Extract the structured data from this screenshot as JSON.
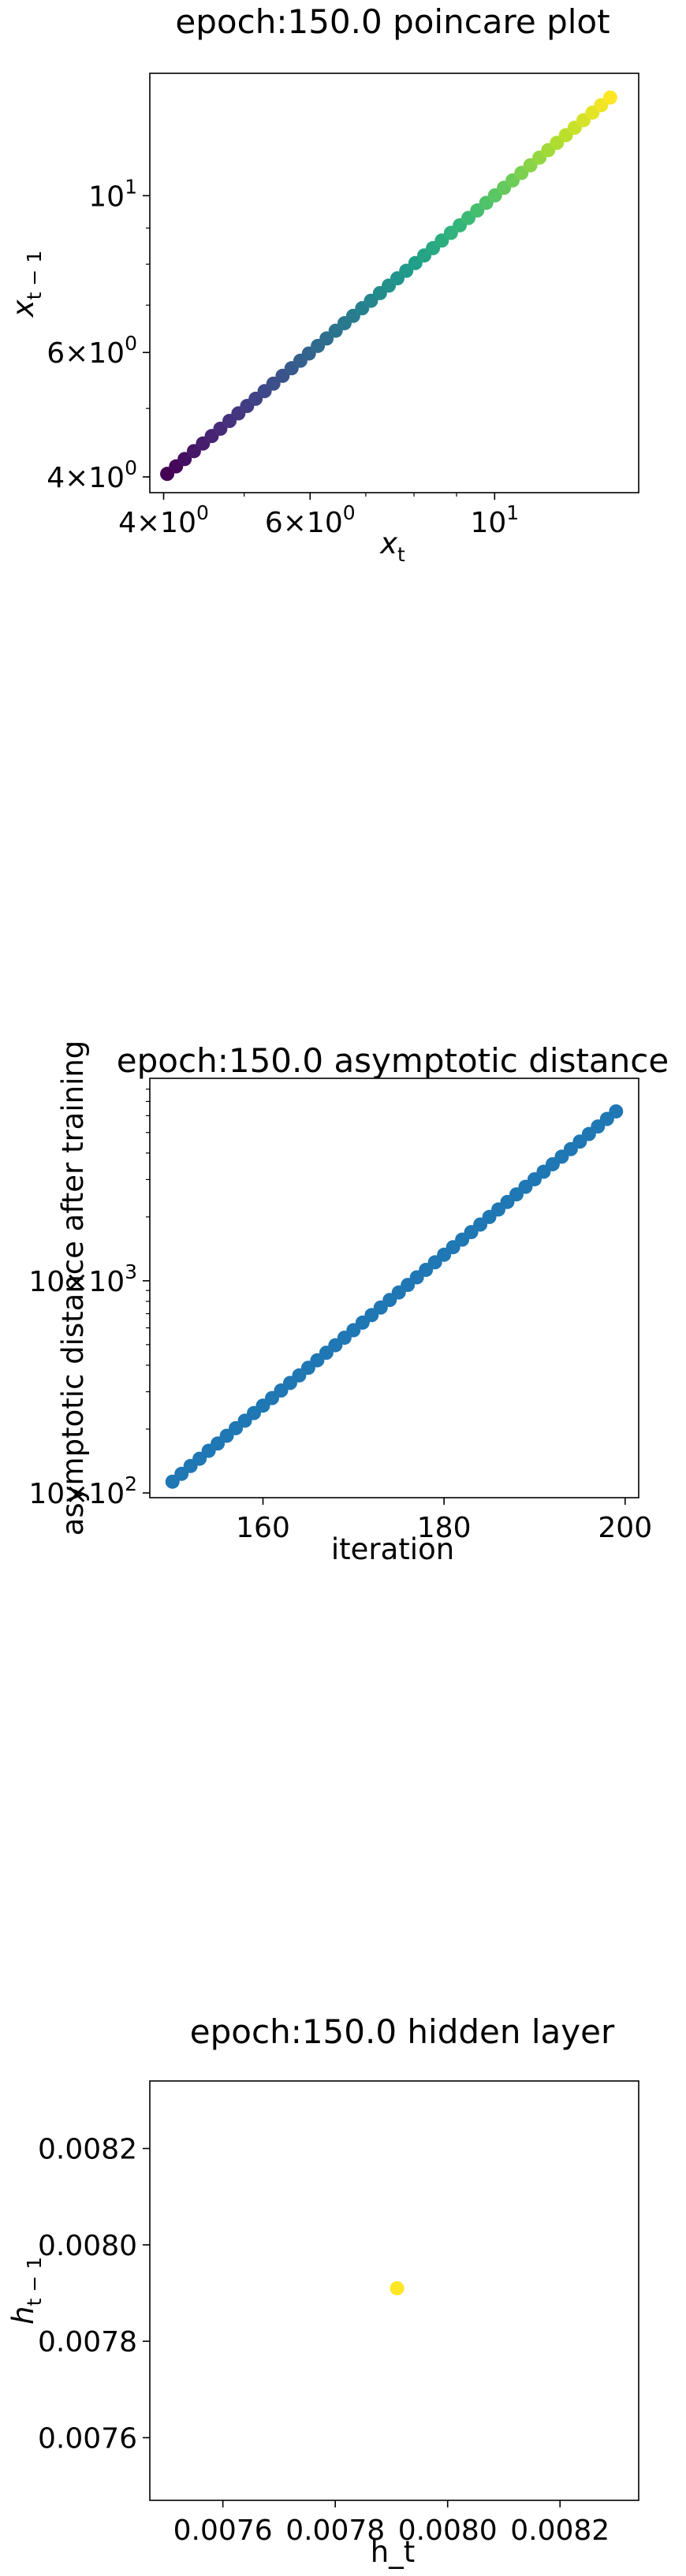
{
  "chart_data": [
    {
      "type": "scatter",
      "title": "epoch:150.0 poincare plot",
      "xlabel": "x_t",
      "ylabel": "x_{t-1}",
      "xscale": "log",
      "yscale": "log",
      "xlim": [
        3.85,
        14.9
      ],
      "ylim": [
        3.8,
        14.9
      ],
      "xticks": [
        {
          "value": 4,
          "mantissa": "4",
          "exponent": "0"
        },
        {
          "value": 6,
          "mantissa": "6",
          "exponent": "0"
        },
        {
          "value": 10,
          "mantissa": "",
          "exponent": "1"
        }
      ],
      "yticks": [
        {
          "value": 4,
          "mantissa": "4",
          "exponent": "0"
        },
        {
          "value": 6,
          "mantissa": "6",
          "exponent": "0"
        },
        {
          "value": 10,
          "mantissa": "",
          "exponent": "1"
        }
      ],
      "colormap": "viridis",
      "series": [
        {
          "x": [
            4.04,
            4.14,
            4.24,
            4.35,
            4.46,
            4.57,
            4.68,
            4.8,
            4.92,
            5.04,
            5.16,
            5.29,
            5.42,
            5.56,
            5.7,
            5.84,
            5.98,
            6.13,
            6.28,
            6.44,
            6.6,
            6.76,
            6.93,
            7.1,
            7.28,
            7.46,
            7.64,
            7.83,
            8.03,
            8.23,
            8.43,
            8.64,
            8.86,
            9.08,
            9.3,
            9.53,
            9.77,
            10.01,
            10.26,
            10.51,
            10.77,
            11.04,
            11.32,
            11.6,
            11.88,
            12.18,
            12.48,
            12.79,
            13.11,
            13.43,
            13.77
          ],
          "y": [
            4.04,
            4.14,
            4.24,
            4.35,
            4.46,
            4.57,
            4.68,
            4.8,
            4.92,
            5.04,
            5.16,
            5.29,
            5.42,
            5.56,
            5.7,
            5.84,
            5.98,
            6.13,
            6.28,
            6.44,
            6.6,
            6.76,
            6.93,
            7.1,
            7.28,
            7.46,
            7.64,
            7.83,
            8.03,
            8.23,
            8.43,
            8.64,
            8.86,
            9.08,
            9.3,
            9.53,
            9.77,
            10.01,
            10.26,
            10.51,
            10.77,
            11.04,
            11.32,
            11.6,
            11.88,
            12.18,
            12.48,
            12.79,
            13.11,
            13.43,
            13.77
          ]
        }
      ]
    },
    {
      "type": "scatter",
      "title": "epoch:150.0 asymptotic distance",
      "xlabel": "iteration",
      "ylabel": "asymptotic distance after training",
      "xscale": "linear",
      "yscale": "log",
      "xlim": [
        147.5,
        201.5
      ],
      "ylim": [
        95,
        9000
      ],
      "xticks": [
        {
          "value": 160,
          "label": "160"
        },
        {
          "value": 180,
          "label": "180"
        },
        {
          "value": 200,
          "label": "200"
        }
      ],
      "yticks": [
        {
          "value": 100,
          "mantissa": "10",
          "exponent": "2"
        },
        {
          "value": 1000,
          "mantissa": "10",
          "exponent": "3"
        }
      ],
      "color": "#1f77b4",
      "series": [
        {
          "x": [
            150,
            151,
            152,
            153,
            154,
            155,
            156,
            157,
            158,
            159,
            160,
            161,
            162,
            163,
            164,
            165,
            166,
            167,
            168,
            169,
            170,
            171,
            172,
            173,
            174,
            175,
            176,
            177,
            178,
            179,
            180,
            181,
            182,
            183,
            184,
            185,
            186,
            187,
            188,
            189,
            190,
            191,
            192,
            193,
            194,
            195,
            196,
            197,
            198,
            199
          ],
          "y": [
            113,
            123,
            134,
            145,
            158,
            171,
            186,
            202,
            219,
            238,
            258,
            280,
            304,
            330,
            358,
            389,
            422,
            458,
            497,
            539,
            585,
            635,
            689,
            748,
            812,
            881,
            956,
            1038,
            1126,
            1222,
            1327,
            1440,
            1563,
            1696,
            1841,
            1998,
            2168,
            2353,
            2554,
            2772,
            3008,
            3265,
            3544,
            3846,
            4174,
            4530,
            4917,
            5336,
            5791,
            6285
          ]
        }
      ]
    },
    {
      "type": "scatter",
      "title": "epoch:150.0 hidden layer",
      "xlabel": "h_t",
      "ylabel": "h_{t-1}",
      "xscale": "linear",
      "yscale": "linear",
      "xlim": [
        0.00747,
        0.00834
      ],
      "ylim": [
        0.00747,
        0.00834
      ],
      "xticks": [
        {
          "value": 0.0076,
          "label": "0.0076"
        },
        {
          "value": 0.0078,
          "label": "0.0078"
        },
        {
          "value": 0.008,
          "label": "0.0080"
        },
        {
          "value": 0.0082,
          "label": "0.0082"
        }
      ],
      "yticks": [
        {
          "value": 0.0076,
          "label": "0.0076"
        },
        {
          "value": 0.0078,
          "label": "0.0078"
        },
        {
          "value": 0.008,
          "label": "0.0080"
        },
        {
          "value": 0.0082,
          "label": "0.0082"
        }
      ],
      "color": "#fde725",
      "series": [
        {
          "x": [
            0.00791
          ],
          "y": [
            0.00791
          ]
        }
      ]
    }
  ]
}
